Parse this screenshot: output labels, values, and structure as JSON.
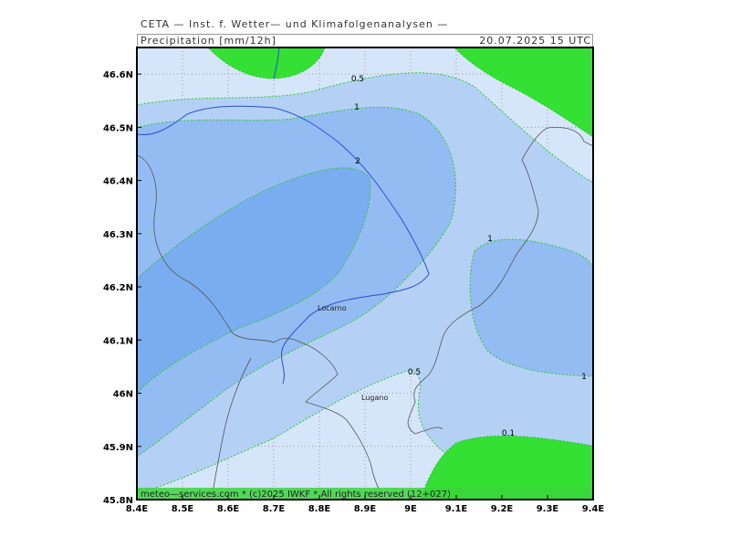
{
  "header": {
    "title": "CETA — Inst. f. Wetter— und Klimafolgenanalysen —",
    "product": "Precipitation [mm/12h]",
    "valid_time": "20.07.2025 15 UTC"
  },
  "axes": {
    "lon_labels": [
      "8.4E",
      "8.5E",
      "8.6E",
      "8.7E",
      "8.8E",
      "8.9E",
      "9E",
      "9.1E",
      "9.2E",
      "9.3E",
      "9.4E"
    ],
    "lat_labels": [
      "46.6N",
      "46.5N",
      "46.4N",
      "46.3N",
      "46.2N",
      "46.1N",
      "46N",
      "45.9N",
      "45.8N"
    ],
    "lon_range": [
      8.4,
      9.4
    ],
    "lat_range": [
      45.8,
      46.65
    ]
  },
  "contour_labels": [
    "0.5",
    "1",
    "2",
    "1",
    "0.5",
    "1",
    "0.1"
  ],
  "cities": [
    "Locarno",
    "Lugano"
  ],
  "footer": "meteo—services.com * (c)2025 IWKF * All rights reserved (12+027)",
  "colors": {
    "lt_0_1": "#33e033",
    "band_0_1_0_5": "#d6e6fa",
    "band_0_5_1": "#b4d1f5",
    "band_1_2": "#93bcf2",
    "band_gt_2": "#7aadf0",
    "contour": "#2fc42f",
    "rivers": "#2a4fd6",
    "borders": "#555555"
  },
  "chart_data": {
    "type": "map",
    "title": "Precipitation [mm/12h]",
    "xlabel": "",
    "ylabel": "",
    "xlim": [
      8.4,
      9.4
    ],
    "ylim": [
      45.8,
      46.65
    ],
    "contour_levels": [
      0.1,
      0.5,
      1,
      2
    ],
    "grid": true
  }
}
